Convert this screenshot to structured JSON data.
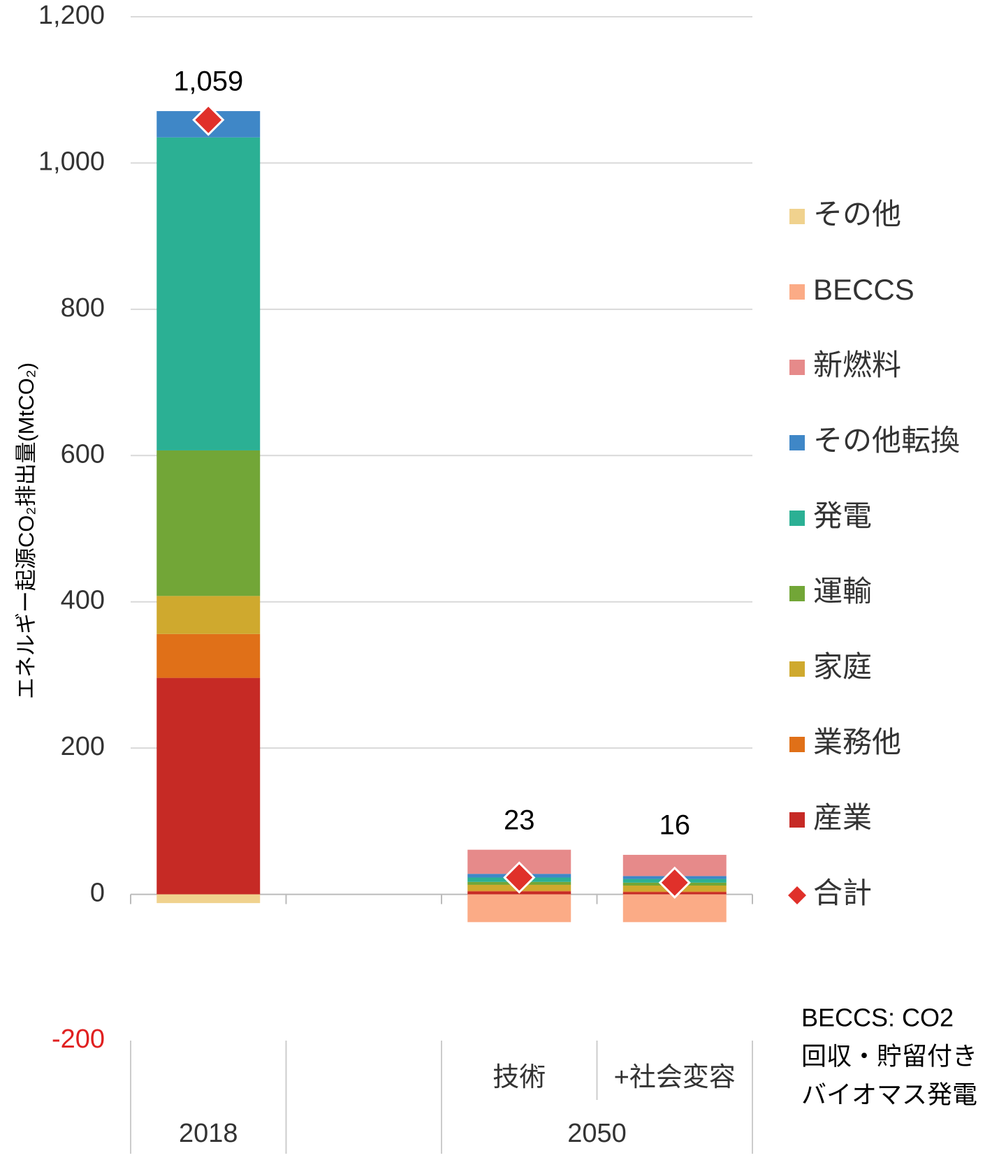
{
  "chart_data": {
    "type": "bar",
    "stacked": true,
    "y_label": "エネルギー起源CO₂排出量(MtCO₂)",
    "categories": [
      null,
      null,
      "技術",
      "+社会変容"
    ],
    "category_groups": [
      "2018",
      null,
      "2050",
      "2050"
    ],
    "series": [
      {
        "name": "産業",
        "color": "#c62a25",
        "values": [
          296,
          0,
          4,
          3
        ]
      },
      {
        "name": "業務他",
        "color": "#e07018",
        "values": [
          60,
          0,
          1,
          1
        ]
      },
      {
        "name": "家庭",
        "color": "#cfa92e",
        "values": [
          52,
          0,
          8,
          8
        ]
      },
      {
        "name": "運輸",
        "color": "#72a637",
        "values": [
          199,
          0,
          4,
          4
        ]
      },
      {
        "name": "発電",
        "color": "#2bb094",
        "values": [
          428,
          0,
          6,
          5
        ]
      },
      {
        "name": "その他転換",
        "color": "#3f87c7",
        "values": [
          36,
          0,
          5,
          4
        ]
      },
      {
        "name": "新燃料",
        "color": "#e68a8a",
        "values": [
          0,
          0,
          33,
          29
        ]
      },
      {
        "name": "BECCS",
        "color": "#fbab86",
        "values": [
          0,
          0,
          -38,
          -38
        ]
      },
      {
        "name": "その他",
        "color": "#f0d28e",
        "values": [
          -12,
          0,
          0,
          0
        ]
      }
    ],
    "totals": {
      "name": "合計",
      "color": "#e0302a",
      "values": [
        1059,
        null,
        23,
        16
      ],
      "value_labels": [
        "1,059",
        null,
        "23",
        "16"
      ]
    },
    "ylim": [
      -200,
      1200
    ],
    "yticks": [
      {
        "value": -200,
        "label": "-200",
        "color": "#e02020"
      },
      0,
      200,
      400,
      600,
      800,
      {
        "value": 1000,
        "label": "1,000"
      },
      {
        "value": 1200,
        "label": "1,200"
      }
    ],
    "grid": true,
    "legend": "right",
    "note": [
      "BECCS: CO2",
      "回収・貯留付き",
      "バイオマス発電"
    ]
  }
}
